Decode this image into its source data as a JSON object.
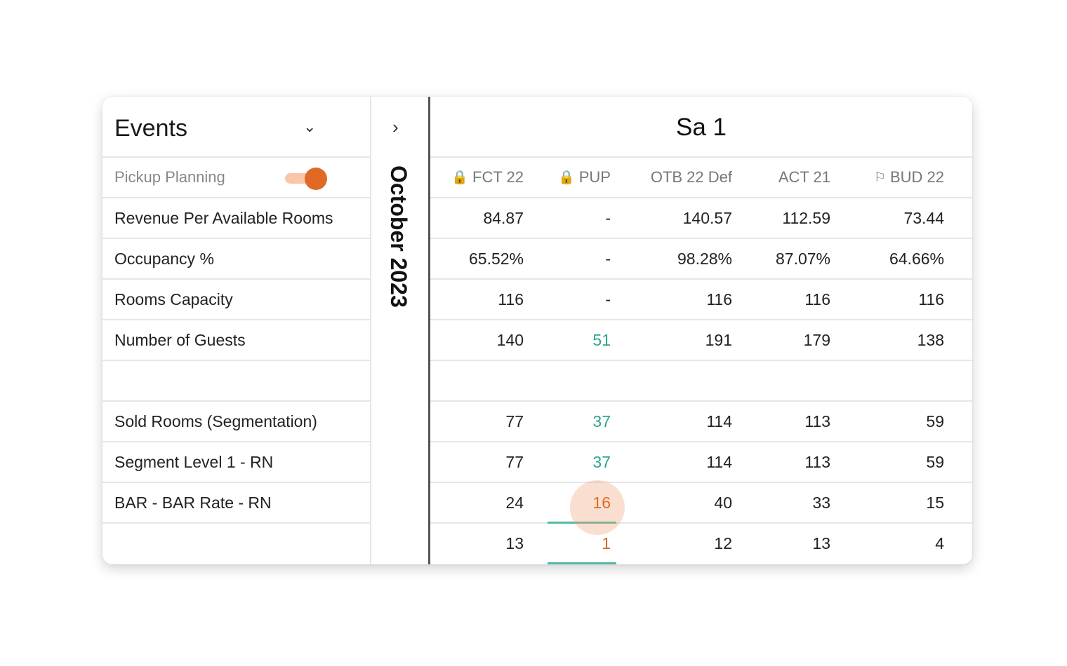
{
  "panel": {
    "title": "Events",
    "toggle_label": "Pickup Planning",
    "toggle_on": true
  },
  "month": "October 2023",
  "day": "Sa 1",
  "columns": [
    {
      "label": "FCT 22",
      "icon": "lock-icon"
    },
    {
      "label": "PUP",
      "icon": "lock-icon"
    },
    {
      "label": "OTB 22 Def",
      "icon": ""
    },
    {
      "label": "ACT 21",
      "icon": ""
    },
    {
      "label": "BUD 22",
      "icon": "flag-icon"
    }
  ],
  "rows": [
    {
      "label": "Revenue Per Available Rooms",
      "values": [
        "84.87",
        "-",
        "140.57",
        "112.59",
        "73.44"
      ]
    },
    {
      "label": "Occupancy %",
      "values": [
        "65.52%",
        "-",
        "98.28%",
        "87.07%",
        "64.66%"
      ]
    },
    {
      "label": "Rooms Capacity",
      "values": [
        "116",
        "-",
        "116",
        "116",
        "116"
      ]
    },
    {
      "label": "Number of Guests",
      "values": [
        "140",
        "51",
        "191",
        "179",
        "138"
      ]
    },
    {
      "label": "",
      "values": [
        "",
        "",
        "",
        "",
        ""
      ]
    },
    {
      "label": "Sold Rooms (Segmentation)",
      "values": [
        "77",
        "37",
        "114",
        "113",
        "59"
      ]
    },
    {
      "label": "Segment Level 1 - RN",
      "values": [
        "77",
        "37",
        "114",
        "113",
        "59"
      ]
    },
    {
      "label": "BAR - BAR Rate - RN",
      "values": [
        "24",
        "16",
        "40",
        "33",
        "15"
      ]
    },
    {
      "label": "",
      "values": [
        "13",
        "1",
        "12",
        "13",
        "4"
      ]
    }
  ],
  "colors": {
    "accent": "#e06a25",
    "teal": "#2aa58f"
  }
}
